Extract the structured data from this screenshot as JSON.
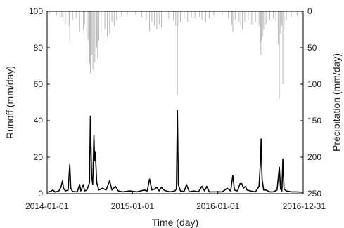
{
  "chart_data": {
    "type": "line",
    "title": "",
    "xlabel": "Time (day)",
    "ylabel_left": "Runoff (mm/day)",
    "ylabel_right": "Precipitation (mm/day)",
    "x_range": [
      "2014-01-01",
      "2016-12-31"
    ],
    "x_ticks": [
      "2014-01-01",
      "2015-01-01",
      "2016-01-01",
      "2016-12-31"
    ],
    "ylim_left": [
      0,
      100
    ],
    "yticks_left": [
      0,
      20,
      40,
      60,
      80,
      100
    ],
    "ylim_right_inverted": [
      0,
      250
    ],
    "yticks_right": [
      0,
      50,
      100,
      150,
      200,
      250
    ],
    "grid": false,
    "series": [
      {
        "type": "line",
        "axis": "left",
        "color": "#000000",
        "points": [
          [
            "2014-01-01",
            0.8
          ],
          [
            "2014-01-15",
            1.2
          ],
          [
            "2014-01-25",
            2.0
          ],
          [
            "2014-02-05",
            0.9
          ],
          [
            "2014-02-20",
            1.5
          ],
          [
            "2014-03-01",
            3.5
          ],
          [
            "2014-03-05",
            5.5
          ],
          [
            "2014-03-08",
            7.0
          ],
          [
            "2014-03-12",
            3.0
          ],
          [
            "2014-03-20",
            1.5
          ],
          [
            "2014-04-01",
            2.0
          ],
          [
            "2014-04-08",
            16.0
          ],
          [
            "2014-04-12",
            3.0
          ],
          [
            "2014-04-20",
            1.2
          ],
          [
            "2014-05-10",
            1.0
          ],
          [
            "2014-05-20",
            5.0
          ],
          [
            "2014-05-25",
            1.5
          ],
          [
            "2014-06-05",
            5.0
          ],
          [
            "2014-06-10",
            1.5
          ],
          [
            "2014-06-20",
            2.0
          ],
          [
            "2014-07-01",
            6.0
          ],
          [
            "2014-07-05",
            42.5
          ],
          [
            "2014-07-10",
            10.0
          ],
          [
            "2014-07-15",
            5.0
          ],
          [
            "2014-07-20",
            32.0
          ],
          [
            "2014-07-23",
            18.0
          ],
          [
            "2014-07-26",
            23.0
          ],
          [
            "2014-08-01",
            6.0
          ],
          [
            "2014-08-10",
            2.0
          ],
          [
            "2014-08-25",
            3.0
          ],
          [
            "2014-09-10",
            2.0
          ],
          [
            "2014-09-25",
            7.0
          ],
          [
            "2014-10-05",
            2.0
          ],
          [
            "2014-10-20",
            4.0
          ],
          [
            "2014-11-01",
            1.5
          ],
          [
            "2014-11-20",
            1.0
          ],
          [
            "2014-12-20",
            1.5
          ],
          [
            "2015-01-20",
            1.0
          ],
          [
            "2015-02-20",
            2.0
          ],
          [
            "2015-03-05",
            1.5
          ],
          [
            "2015-03-15",
            8.0
          ],
          [
            "2015-03-25",
            2.0
          ],
          [
            "2015-04-05",
            2.5
          ],
          [
            "2015-04-15",
            3.5
          ],
          [
            "2015-04-25",
            1.5
          ],
          [
            "2015-05-05",
            3.5
          ],
          [
            "2015-05-15",
            2.0
          ],
          [
            "2015-05-25",
            1.5
          ],
          [
            "2015-06-10",
            1.0
          ],
          [
            "2015-07-01",
            1.5
          ],
          [
            "2015-07-08",
            2.5
          ],
          [
            "2015-07-12",
            45.5
          ],
          [
            "2015-07-16",
            5.0
          ],
          [
            "2015-07-25",
            1.5
          ],
          [
            "2015-08-10",
            1.2
          ],
          [
            "2015-08-20",
            5.0
          ],
          [
            "2015-09-01",
            1.0
          ],
          [
            "2015-09-20",
            1.5
          ],
          [
            "2015-10-10",
            1.0
          ],
          [
            "2015-10-25",
            4.0
          ],
          [
            "2015-11-05",
            1.5
          ],
          [
            "2015-11-15",
            4.0
          ],
          [
            "2015-11-25",
            1.0
          ],
          [
            "2015-12-20",
            1.0
          ],
          [
            "2016-01-20",
            1.0
          ],
          [
            "2016-02-10",
            3.0
          ],
          [
            "2016-02-25",
            1.5
          ],
          [
            "2016-03-05",
            10.0
          ],
          [
            "2016-03-12",
            2.0
          ],
          [
            "2016-03-25",
            1.5
          ],
          [
            "2016-04-05",
            5.5
          ],
          [
            "2016-04-12",
            5.5
          ],
          [
            "2016-04-20",
            3.0
          ],
          [
            "2016-04-28",
            4.0
          ],
          [
            "2016-05-05",
            2.0
          ],
          [
            "2016-05-20",
            1.5
          ],
          [
            "2016-06-10",
            1.0
          ],
          [
            "2016-06-25",
            4.0
          ],
          [
            "2016-07-01",
            17.0
          ],
          [
            "2016-07-04",
            30.0
          ],
          [
            "2016-07-08",
            8.0
          ],
          [
            "2016-07-15",
            2.0
          ],
          [
            "2016-07-25",
            2.0
          ],
          [
            "2016-08-10",
            1.0
          ],
          [
            "2016-08-25",
            1.0
          ],
          [
            "2016-09-10",
            2.0
          ],
          [
            "2016-09-20",
            14.5
          ],
          [
            "2016-09-25",
            2.5
          ],
          [
            "2016-10-01",
            1.5
          ],
          [
            "2016-10-05",
            19.0
          ],
          [
            "2016-10-10",
            2.5
          ],
          [
            "2016-10-20",
            1.5
          ],
          [
            "2016-11-10",
            1.0
          ],
          [
            "2016-12-01",
            1.0
          ],
          [
            "2016-12-31",
            0.8
          ]
        ]
      },
      {
        "type": "bar",
        "axis": "right",
        "color": "#b8b8b8",
        "points": [
          [
            "2014-01-10",
            4
          ],
          [
            "2014-02-10",
            6
          ],
          [
            "2014-02-25",
            10
          ],
          [
            "2014-03-05",
            8
          ],
          [
            "2014-03-10",
            14
          ],
          [
            "2014-03-20",
            18
          ],
          [
            "2014-04-05",
            20
          ],
          [
            "2014-04-08",
            42
          ],
          [
            "2014-04-20",
            12
          ],
          [
            "2014-05-05",
            10
          ],
          [
            "2014-05-20",
            28
          ],
          [
            "2014-06-05",
            26
          ],
          [
            "2014-06-10",
            18
          ],
          [
            "2014-06-25",
            40
          ],
          [
            "2014-07-02",
            72
          ],
          [
            "2014-07-05",
            85
          ],
          [
            "2014-07-08",
            55
          ],
          [
            "2014-07-12",
            60
          ],
          [
            "2014-07-16",
            80
          ],
          [
            "2014-07-20",
            90
          ],
          [
            "2014-07-24",
            70
          ],
          [
            "2014-08-01",
            50
          ],
          [
            "2014-08-05",
            65
          ],
          [
            "2014-08-10",
            40
          ],
          [
            "2014-08-20",
            30
          ],
          [
            "2014-08-28",
            45
          ],
          [
            "2014-09-05",
            25
          ],
          [
            "2014-09-15",
            35
          ],
          [
            "2014-09-25",
            30
          ],
          [
            "2014-10-05",
            15
          ],
          [
            "2014-10-15",
            20
          ],
          [
            "2014-10-25",
            12
          ],
          [
            "2014-11-15",
            8
          ],
          [
            "2014-12-10",
            6
          ],
          [
            "2015-01-15",
            5
          ],
          [
            "2015-02-10",
            8
          ],
          [
            "2015-03-01",
            12
          ],
          [
            "2015-03-15",
            28
          ],
          [
            "2015-03-25",
            15
          ],
          [
            "2015-04-05",
            20
          ],
          [
            "2015-04-15",
            25
          ],
          [
            "2015-04-25",
            18
          ],
          [
            "2015-05-05",
            22
          ],
          [
            "2015-05-20",
            15
          ],
          [
            "2015-06-05",
            10
          ],
          [
            "2015-06-25",
            12
          ],
          [
            "2015-07-05",
            20
          ],
          [
            "2015-07-12",
            115
          ],
          [
            "2015-07-18",
            20
          ],
          [
            "2015-07-25",
            15
          ],
          [
            "2015-08-10",
            10
          ],
          [
            "2015-08-25",
            15
          ],
          [
            "2015-09-10",
            8
          ],
          [
            "2015-09-25",
            10
          ],
          [
            "2015-10-15",
            8
          ],
          [
            "2015-10-25",
            12
          ],
          [
            "2015-11-10",
            15
          ],
          [
            "2015-11-25",
            10
          ],
          [
            "2015-12-15",
            6
          ],
          [
            "2016-01-20",
            5
          ],
          [
            "2016-02-15",
            10
          ],
          [
            "2016-03-01",
            18
          ],
          [
            "2016-03-05",
            28
          ],
          [
            "2016-03-15",
            12
          ],
          [
            "2016-04-01",
            15
          ],
          [
            "2016-04-08",
            20
          ],
          [
            "2016-04-15",
            25
          ],
          [
            "2016-04-25",
            15
          ],
          [
            "2016-05-10",
            12
          ],
          [
            "2016-05-25",
            18
          ],
          [
            "2016-06-10",
            15
          ],
          [
            "2016-06-25",
            20
          ],
          [
            "2016-06-30",
            45
          ],
          [
            "2016-07-03",
            60
          ],
          [
            "2016-07-06",
            40
          ],
          [
            "2016-07-10",
            35
          ],
          [
            "2016-07-15",
            25
          ],
          [
            "2016-07-25",
            18
          ],
          [
            "2016-08-10",
            12
          ],
          [
            "2016-08-25",
            10
          ],
          [
            "2016-09-05",
            15
          ],
          [
            "2016-09-15",
            45
          ],
          [
            "2016-09-20",
            120
          ],
          [
            "2016-09-25",
            30
          ],
          [
            "2016-10-01",
            20
          ],
          [
            "2016-10-05",
            100
          ],
          [
            "2016-10-10",
            25
          ],
          [
            "2016-10-20",
            12
          ],
          [
            "2016-11-10",
            8
          ],
          [
            "2016-12-05",
            6
          ],
          [
            "2016-12-25",
            5
          ]
        ]
      }
    ]
  }
}
